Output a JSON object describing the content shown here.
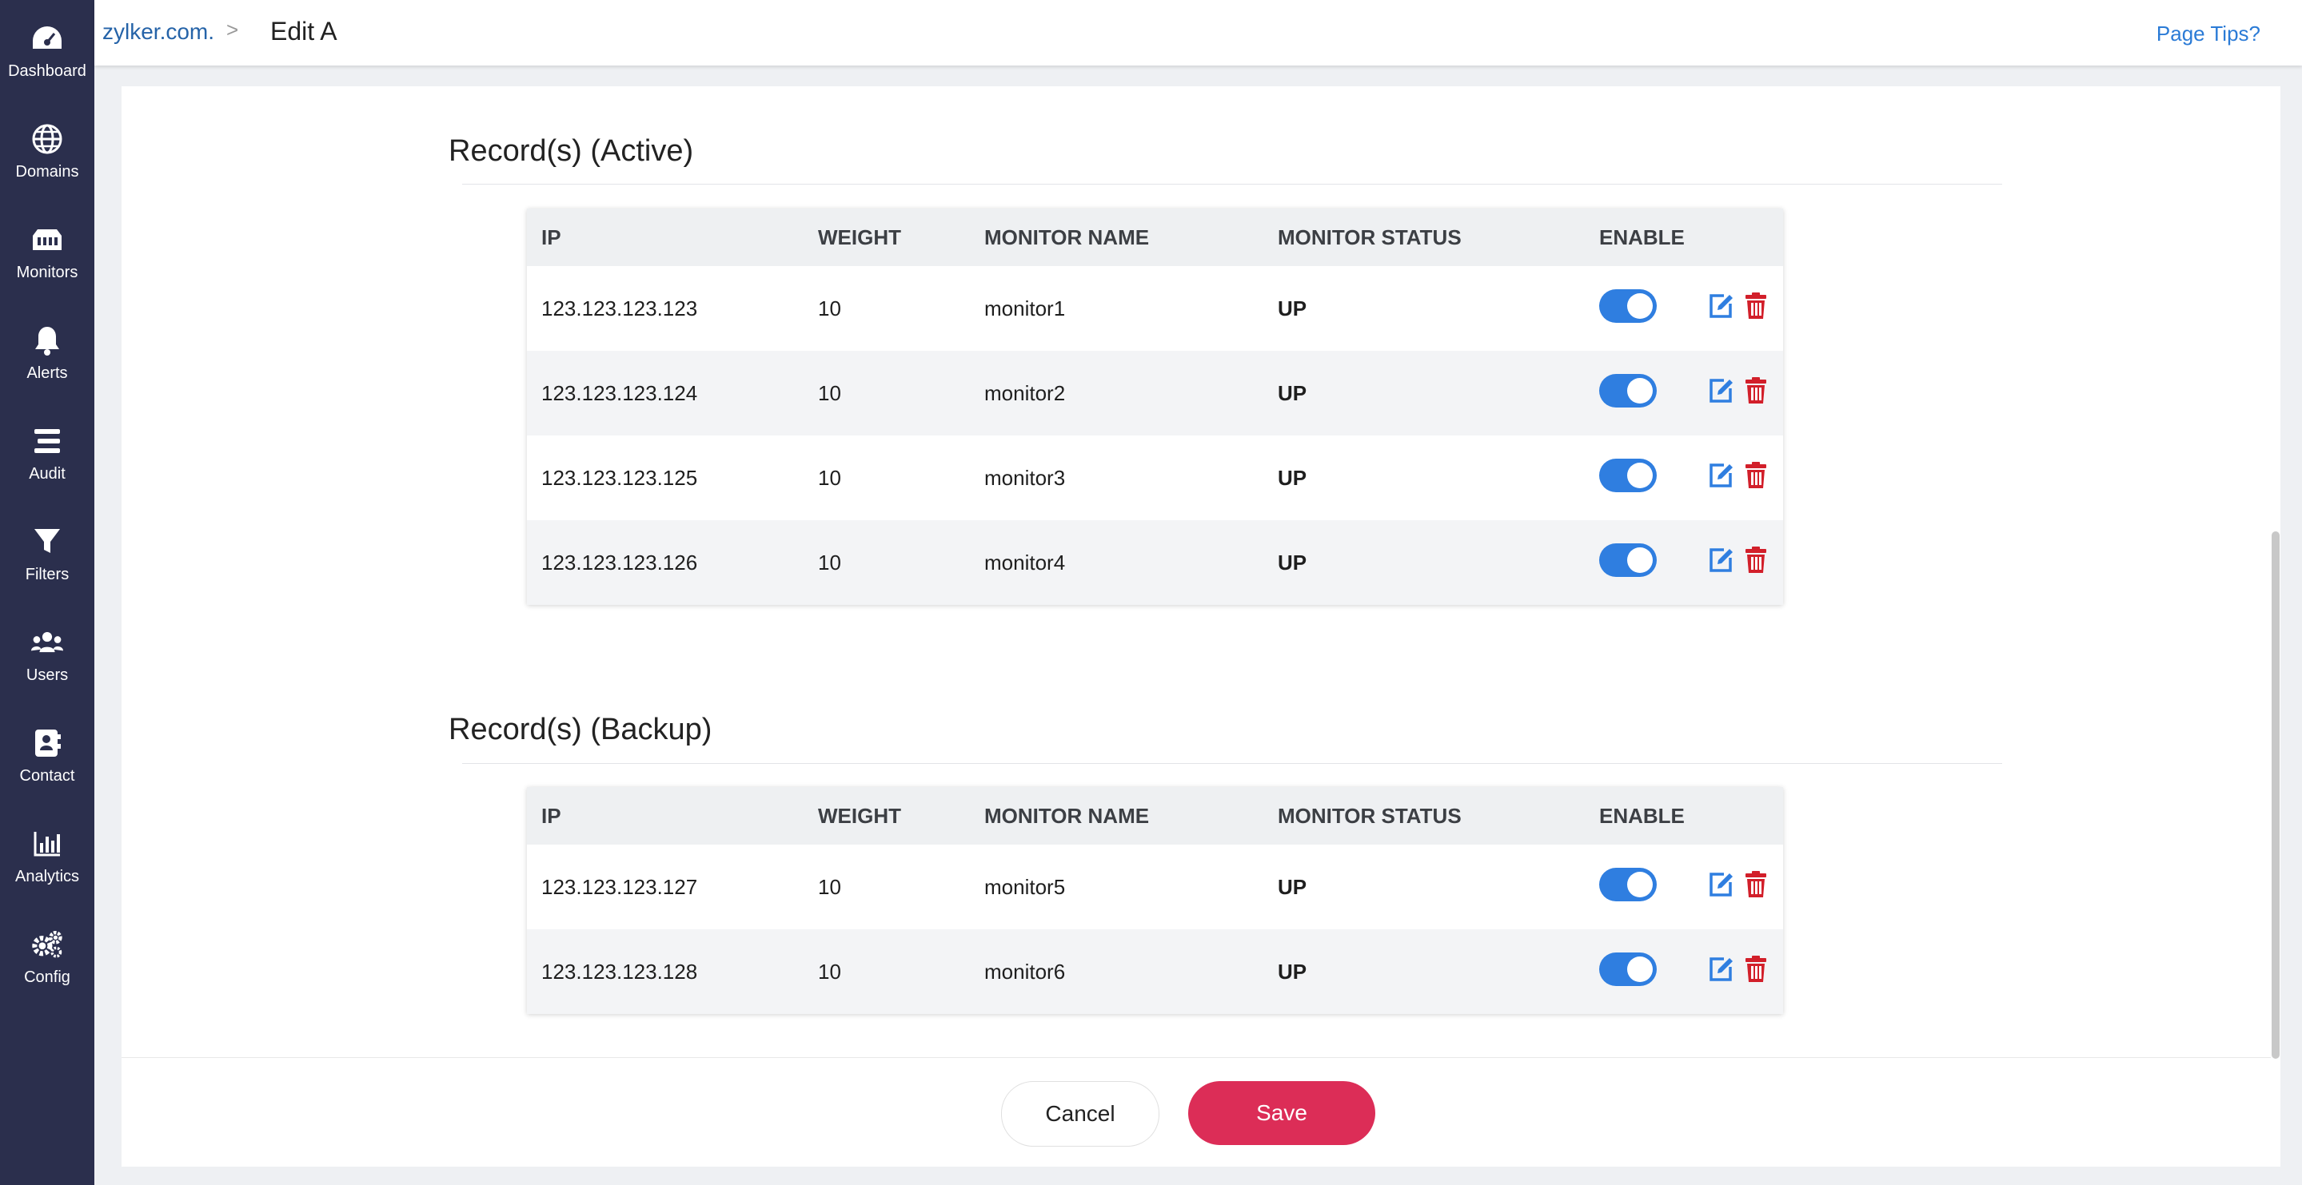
{
  "sidebar": {
    "items": [
      {
        "label": "Dashboard",
        "icon": "dashboard-gauge-icon"
      },
      {
        "label": "Domains",
        "icon": "globe-icon"
      },
      {
        "label": "Monitors",
        "icon": "monitor-network-icon"
      },
      {
        "label": "Alerts",
        "icon": "bell-icon"
      },
      {
        "label": "Audit",
        "icon": "list-icon"
      },
      {
        "label": "Filters",
        "icon": "filter-icon"
      },
      {
        "label": "Users",
        "icon": "users-icon"
      },
      {
        "label": "Contact",
        "icon": "contact-book-icon"
      },
      {
        "label": "Analytics",
        "icon": "bar-chart-icon"
      },
      {
        "label": "Config",
        "icon": "gears-icon"
      }
    ]
  },
  "header": {
    "breadcrumb_link": "zylker.com.",
    "breadcrumb_sep": ">",
    "current": "Edit A",
    "page_tips": "Page Tips?"
  },
  "columns": [
    "IP",
    "WEIGHT",
    "MONITOR NAME",
    "MONITOR STATUS",
    "ENABLE"
  ],
  "active": {
    "title": "Record(s) (Active)",
    "rows": [
      {
        "ip": "123.123.123.123",
        "weight": "10",
        "monitor": "monitor1",
        "status": "UP",
        "enabled": true
      },
      {
        "ip": "123.123.123.124",
        "weight": "10",
        "monitor": "monitor2",
        "status": "UP",
        "enabled": true
      },
      {
        "ip": "123.123.123.125",
        "weight": "10",
        "monitor": "monitor3",
        "status": "UP",
        "enabled": true
      },
      {
        "ip": "123.123.123.126",
        "weight": "10",
        "monitor": "monitor4",
        "status": "UP",
        "enabled": true
      }
    ]
  },
  "backup": {
    "title": "Record(s) (Backup)",
    "rows": [
      {
        "ip": "123.123.123.127",
        "weight": "10",
        "monitor": "monitor5",
        "status": "UP",
        "enabled": true
      },
      {
        "ip": "123.123.123.128",
        "weight": "10",
        "monitor": "monitor6",
        "status": "UP",
        "enabled": true
      }
    ]
  },
  "footer": {
    "cancel_label": "Cancel",
    "save_label": "Save"
  },
  "colors": {
    "sidebar": "#2b2f4d",
    "accent": "#2f7ee0",
    "save": "#dc2d57",
    "status_up": "#5bb318",
    "delete": "#d21f2a"
  }
}
